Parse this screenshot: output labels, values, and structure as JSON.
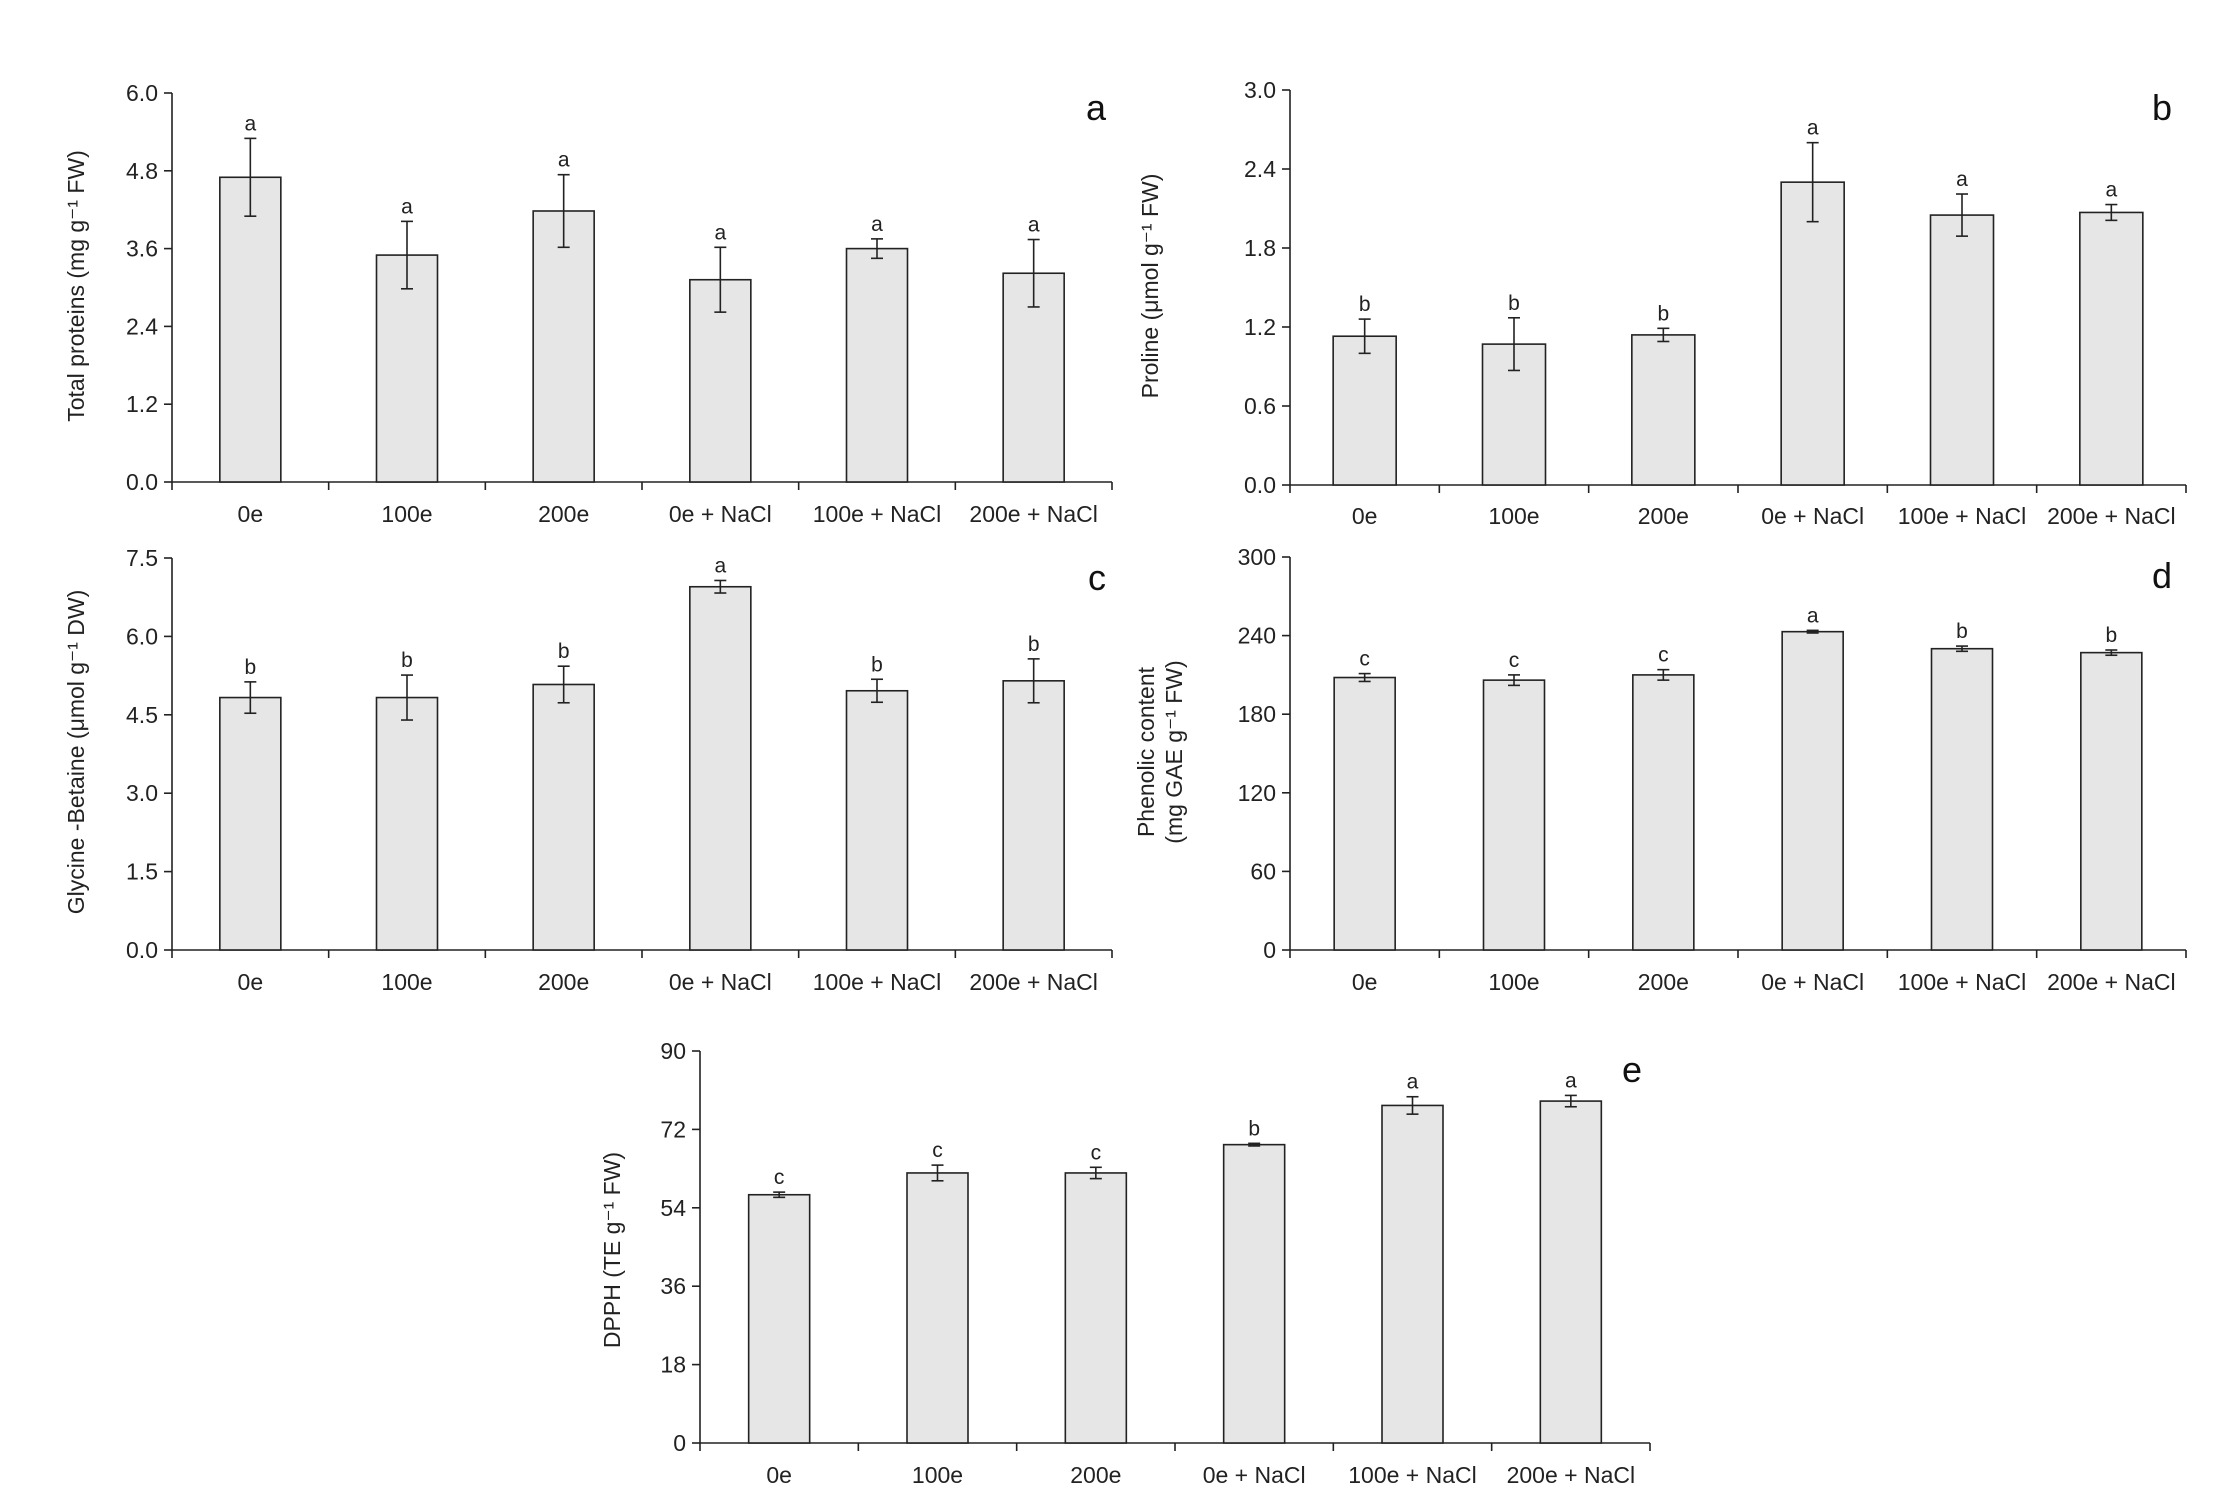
{
  "chart_data": [
    {
      "id": "a",
      "type": "bar",
      "panel_label": "a",
      "ylabel": "Total  proteins (mg g⁻¹ FW)",
      "ylim": [
        0,
        6.0
      ],
      "yticks": [
        "0.0",
        "1.2",
        "2.4",
        "3.6",
        "4.8",
        "6.0"
      ],
      "categories": [
        "0e",
        "100e",
        "200e",
        "0e + NaCl",
        "100e + NaCl",
        "200e + NaCl"
      ],
      "values": [
        4.7,
        3.5,
        4.18,
        3.12,
        3.6,
        3.22
      ],
      "errors": [
        0.6,
        0.52,
        0.56,
        0.5,
        0.15,
        0.52
      ],
      "letters": [
        "a",
        "a",
        "a",
        "a",
        "a",
        "a"
      ]
    },
    {
      "id": "b",
      "type": "bar",
      "panel_label": "b",
      "ylabel": "Proline (μmol g⁻¹ FW)",
      "ylim": [
        0,
        3.0
      ],
      "yticks": [
        "0.0",
        "0.6",
        "1.2",
        "1.8",
        "2.4",
        "3.0"
      ],
      "categories": [
        "0e",
        "100e",
        "200e",
        "0e + NaCl",
        "100e + NaCl",
        "200e + NaCl"
      ],
      "values": [
        1.13,
        1.07,
        1.14,
        2.3,
        2.05,
        2.07
      ],
      "errors": [
        0.13,
        0.2,
        0.05,
        0.3,
        0.16,
        0.06
      ],
      "letters": [
        "b",
        "b",
        "b",
        "a",
        "a",
        "a"
      ]
    },
    {
      "id": "c",
      "type": "bar",
      "panel_label": "c",
      "ylabel": "Glycine -Betaine (μmol g⁻¹ DW)",
      "ylim": [
        0,
        7.5
      ],
      "yticks": [
        "0.0",
        "1.5",
        "3.0",
        "4.5",
        "6.0",
        "7.5"
      ],
      "categories": [
        "0e",
        "100e",
        "200e",
        "0e + NaCl",
        "100e + NaCl",
        "200e + NaCl"
      ],
      "values": [
        4.83,
        4.83,
        5.08,
        6.95,
        4.96,
        5.15
      ],
      "errors": [
        0.3,
        0.43,
        0.35,
        0.12,
        0.22,
        0.42
      ],
      "letters": [
        "b",
        "b",
        "b",
        "a",
        "b",
        "b"
      ]
    },
    {
      "id": "d",
      "type": "bar",
      "panel_label": "d",
      "ylabel_lines": [
        "Phenolic content",
        "(mg GAE g⁻¹ FW)"
      ],
      "ylim": [
        0,
        300
      ],
      "yticks": [
        "0",
        "60",
        "120",
        "180",
        "240",
        "300"
      ],
      "categories": [
        "0e",
        "100e",
        "200e",
        "0e + NaCl",
        "100e + NaCl",
        "200e + NaCl"
      ],
      "values": [
        208,
        206,
        210,
        243,
        230,
        227
      ],
      "errors": [
        3,
        4,
        4,
        1,
        2,
        2
      ],
      "letters": [
        "c",
        "c",
        "c",
        "a",
        "b",
        "b"
      ]
    },
    {
      "id": "e",
      "type": "bar",
      "panel_label": "e",
      "ylabel": "DPPH (TE g⁻¹ FW)",
      "ylim": [
        0,
        90
      ],
      "yticks": [
        "0",
        "18",
        "36",
        "54",
        "72",
        "90"
      ],
      "categories": [
        "0e",
        "100e",
        "200e",
        "0e + NaCl",
        "100e + NaCl",
        "200e + NaCl"
      ],
      "values": [
        57,
        62,
        62,
        68.5,
        77.5,
        78.5
      ],
      "errors": [
        0.6,
        1.8,
        1.3,
        0.3,
        2,
        1.3
      ],
      "letters": [
        "c",
        "c",
        "c",
        "b",
        "a",
        "a"
      ]
    }
  ]
}
